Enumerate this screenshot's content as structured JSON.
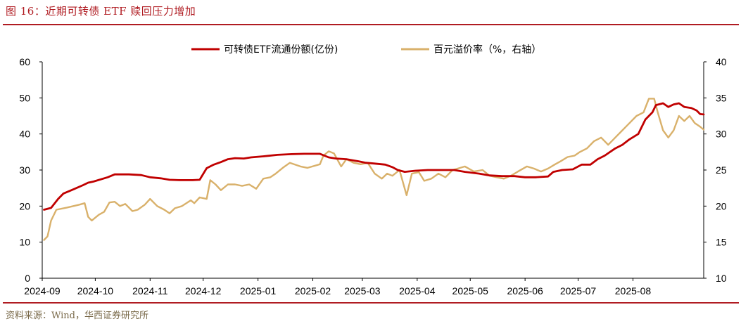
{
  "figure": {
    "title": "图 16：近期可转债 ETF 赎回压力增加",
    "source": "资料来源：Wind，华西证券研究所",
    "colors": {
      "accent": "#b01c22",
      "left_series": "#c00000",
      "right_series": "#d9b16b"
    }
  },
  "chart_data": {
    "type": "line",
    "title": "",
    "xlabel": "",
    "ylabel_left": "",
    "ylabel_right": "",
    "x_ticks": [
      "2024-09",
      "2024-10",
      "2024-11",
      "2024-12",
      "2025-01",
      "2025-02",
      "2025-03",
      "2025-04",
      "2025-05",
      "2025-06",
      "2025-07",
      "2025-08"
    ],
    "ylim_left": [
      0,
      60
    ],
    "yticks_left": [
      "0",
      "10",
      "20",
      "30",
      "40",
      "50",
      "60"
    ],
    "ylim_right": [
      10,
      40
    ],
    "yticks_right": [
      "10",
      "15",
      "20",
      "25",
      "30",
      "35",
      "40"
    ],
    "grid": false,
    "legend_position": "top-center",
    "series": [
      {
        "name": "可转债ETF流通份额(亿份)",
        "axis": "left",
        "color": "#c00000",
        "points": [
          [
            "2024-09-02",
            19
          ],
          [
            "2024-09-06",
            19.5
          ],
          [
            "2024-09-10",
            22
          ],
          [
            "2024-09-13",
            23.5
          ],
          [
            "2024-09-18",
            24.5
          ],
          [
            "2024-09-24",
            25.8
          ],
          [
            "2024-09-27",
            26.5
          ],
          [
            "2024-09-30",
            26.8
          ],
          [
            "2024-10-08",
            28
          ],
          [
            "2024-10-12",
            28.8
          ],
          [
            "2024-10-20",
            28.8
          ],
          [
            "2024-10-27",
            28.6
          ],
          [
            "2024-11-01",
            28
          ],
          [
            "2024-11-07",
            27.7
          ],
          [
            "2024-11-12",
            27.3
          ],
          [
            "2024-11-18",
            27.2
          ],
          [
            "2024-11-25",
            27.2
          ],
          [
            "2024-11-29",
            27.3
          ],
          [
            "2024-12-03",
            30.5
          ],
          [
            "2024-12-07",
            31.5
          ],
          [
            "2024-12-11",
            32.2
          ],
          [
            "2024-12-15",
            33
          ],
          [
            "2024-12-19",
            33.3
          ],
          [
            "2024-12-24",
            33.2
          ],
          [
            "2024-12-28",
            33.5
          ],
          [
            "2025-01-04",
            33.8
          ],
          [
            "2025-01-12",
            34.2
          ],
          [
            "2025-01-20",
            34.4
          ],
          [
            "2025-01-27",
            34.5
          ],
          [
            "2025-02-05",
            34.5
          ],
          [
            "2025-02-10",
            33.5
          ],
          [
            "2025-02-14",
            33.2
          ],
          [
            "2025-02-20",
            33
          ],
          [
            "2025-02-26",
            32.5
          ],
          [
            "2025-03-03",
            32
          ],
          [
            "2025-03-08",
            31.8
          ],
          [
            "2025-03-14",
            31.5
          ],
          [
            "2025-03-18",
            30.8
          ],
          [
            "2025-03-21",
            30
          ],
          [
            "2025-03-25",
            29.5
          ],
          [
            "2025-03-31",
            29.8
          ],
          [
            "2025-04-07",
            30
          ],
          [
            "2025-04-14",
            30
          ],
          [
            "2025-04-22",
            30
          ],
          [
            "2025-04-28",
            29.5
          ],
          [
            "2025-05-06",
            29
          ],
          [
            "2025-05-12",
            28.5
          ],
          [
            "2025-05-19",
            28.3
          ],
          [
            "2025-05-26",
            28.3
          ],
          [
            "2025-06-01",
            28
          ],
          [
            "2025-06-07",
            28
          ],
          [
            "2025-06-14",
            28.2
          ],
          [
            "2025-06-17",
            29.5
          ],
          [
            "2025-06-22",
            30
          ],
          [
            "2025-06-28",
            30.2
          ],
          [
            "2025-07-03",
            31.5
          ],
          [
            "2025-07-08",
            31.5
          ],
          [
            "2025-07-12",
            33
          ],
          [
            "2025-07-16",
            34
          ],
          [
            "2025-07-22",
            36
          ],
          [
            "2025-07-26",
            37
          ],
          [
            "2025-07-30",
            38.5
          ],
          [
            "2025-08-04",
            40
          ],
          [
            "2025-08-08",
            44
          ],
          [
            "2025-08-12",
            46
          ],
          [
            "2025-08-14",
            48
          ],
          [
            "2025-08-18",
            48.5
          ],
          [
            "2025-08-21",
            47.5
          ],
          [
            "2025-08-24",
            48.2
          ],
          [
            "2025-08-27",
            48.5
          ],
          [
            "2025-08-30",
            47.5
          ],
          [
            "2025-09-03",
            47.2
          ],
          [
            "2025-09-06",
            46.5
          ],
          [
            "2025-09-08",
            45.5
          ],
          [
            "2025-09-10",
            45.4
          ]
        ]
      },
      {
        "name": "百元溢价率（%，右轴）",
        "axis": "right",
        "color": "#d9b16b",
        "points": [
          [
            "2024-09-02",
            15.3
          ],
          [
            "2024-09-04",
            15.8
          ],
          [
            "2024-09-06",
            18
          ],
          [
            "2024-09-09",
            19.5
          ],
          [
            "2024-09-15",
            19.8
          ],
          [
            "2024-09-22",
            20.2
          ],
          [
            "2024-09-25",
            20.4
          ],
          [
            "2024-09-27",
            18.5
          ],
          [
            "2024-09-29",
            18
          ],
          [
            "2024-10-03",
            18.8
          ],
          [
            "2024-10-06",
            19.2
          ],
          [
            "2024-10-09",
            20.5
          ],
          [
            "2024-10-12",
            20.6
          ],
          [
            "2024-10-15",
            20
          ],
          [
            "2024-10-18",
            20.3
          ],
          [
            "2024-10-22",
            19.3
          ],
          [
            "2024-10-25",
            19.5
          ],
          [
            "2024-10-29",
            20.2
          ],
          [
            "2024-11-01",
            21
          ],
          [
            "2024-11-05",
            20
          ],
          [
            "2024-11-09",
            19.5
          ],
          [
            "2024-11-12",
            19
          ],
          [
            "2024-11-15",
            19.7
          ],
          [
            "2024-11-19",
            20
          ],
          [
            "2024-11-24",
            20.8
          ],
          [
            "2024-11-26",
            20.4
          ],
          [
            "2024-11-29",
            21.2
          ],
          [
            "2024-12-03",
            21
          ],
          [
            "2024-12-05",
            23.6
          ],
          [
            "2024-12-08",
            23
          ],
          [
            "2024-12-11",
            22.2
          ],
          [
            "2024-12-15",
            23
          ],
          [
            "2024-12-19",
            23
          ],
          [
            "2024-12-23",
            22.8
          ],
          [
            "2024-12-27",
            23
          ],
          [
            "2024-12-31",
            22.4
          ],
          [
            "2025-01-04",
            23.8
          ],
          [
            "2025-01-08",
            24
          ],
          [
            "2025-01-11",
            24.5
          ],
          [
            "2025-01-15",
            25.3
          ],
          [
            "2025-01-19",
            26
          ],
          [
            "2025-01-25",
            25.5
          ],
          [
            "2025-01-29",
            25.3
          ],
          [
            "2025-02-05",
            25.8
          ],
          [
            "2025-02-07",
            27
          ],
          [
            "2025-02-10",
            27.6
          ],
          [
            "2025-02-13",
            27.3
          ],
          [
            "2025-02-17",
            25.5
          ],
          [
            "2025-02-20",
            26.5
          ],
          [
            "2025-02-24",
            26
          ],
          [
            "2025-02-28",
            25.8
          ],
          [
            "2025-03-04",
            26
          ],
          [
            "2025-03-08",
            24.5
          ],
          [
            "2025-03-12",
            23.8
          ],
          [
            "2025-03-15",
            24.5
          ],
          [
            "2025-03-18",
            24.2
          ],
          [
            "2025-03-22",
            25
          ],
          [
            "2025-03-26",
            21.5
          ],
          [
            "2025-03-29",
            24.5
          ],
          [
            "2025-04-02",
            24.7
          ],
          [
            "2025-04-05",
            23.5
          ],
          [
            "2025-04-09",
            23.8
          ],
          [
            "2025-04-13",
            24.5
          ],
          [
            "2025-04-17",
            24
          ],
          [
            "2025-04-21",
            25
          ],
          [
            "2025-04-24",
            25.2
          ],
          [
            "2025-04-28",
            25.5
          ],
          [
            "2025-05-03",
            24.8
          ],
          [
            "2025-05-08",
            25
          ],
          [
            "2025-05-12",
            24.2
          ],
          [
            "2025-05-16",
            24
          ],
          [
            "2025-05-20",
            23.8
          ],
          [
            "2025-05-24",
            24.2
          ],
          [
            "2025-05-28",
            24.8
          ],
          [
            "2025-06-02",
            25.5
          ],
          [
            "2025-06-06",
            25.2
          ],
          [
            "2025-06-10",
            24.8
          ],
          [
            "2025-06-14",
            25.2
          ],
          [
            "2025-06-18",
            25.8
          ],
          [
            "2025-06-21",
            26.2
          ],
          [
            "2025-06-25",
            26.8
          ],
          [
            "2025-06-29",
            27
          ],
          [
            "2025-07-02",
            27.5
          ],
          [
            "2025-07-06",
            28
          ],
          [
            "2025-07-10",
            29
          ],
          [
            "2025-07-14",
            29.5
          ],
          [
            "2025-07-18",
            28.5
          ],
          [
            "2025-07-22",
            29.5
          ],
          [
            "2025-07-26",
            30.5
          ],
          [
            "2025-07-30",
            31.5
          ],
          [
            "2025-08-03",
            32.5
          ],
          [
            "2025-08-07",
            33
          ],
          [
            "2025-08-10",
            34.9
          ],
          [
            "2025-08-13",
            34.9
          ],
          [
            "2025-08-15",
            33
          ],
          [
            "2025-08-18",
            30.5
          ],
          [
            "2025-08-21",
            29.5
          ],
          [
            "2025-08-24",
            30.5
          ],
          [
            "2025-08-27",
            32.5
          ],
          [
            "2025-08-30",
            31.8
          ],
          [
            "2025-09-02",
            32.5
          ],
          [
            "2025-09-05",
            31.5
          ],
          [
            "2025-09-08",
            31
          ],
          [
            "2025-09-10",
            30.6
          ]
        ]
      }
    ]
  }
}
